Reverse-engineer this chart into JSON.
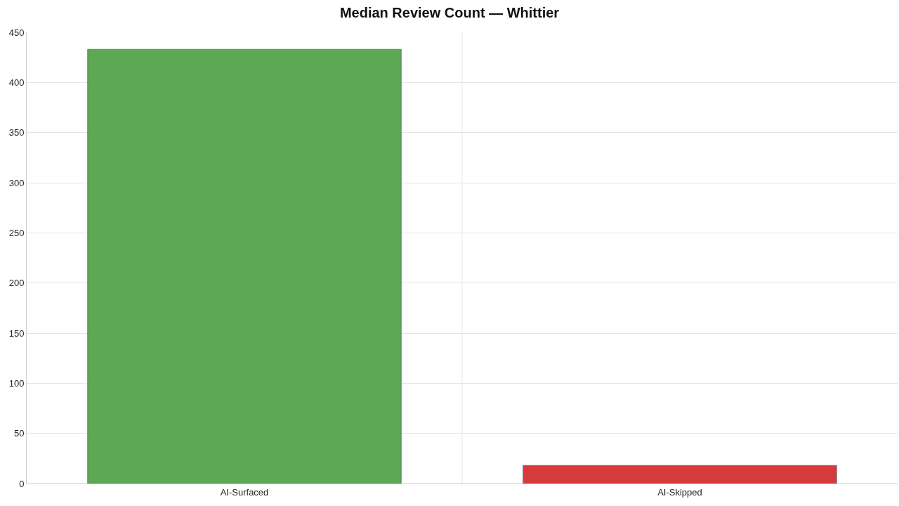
{
  "chart_data": {
    "type": "bar",
    "title": "Median Review Count — Whittier",
    "categories": [
      "AI-Surfaced",
      "AI-Skipped"
    ],
    "values": [
      433,
      18
    ],
    "colors": [
      "#5da853",
      "#d63a3a"
    ],
    "ylim": [
      0,
      450
    ],
    "yticks": [
      0,
      50,
      100,
      150,
      200,
      250,
      300,
      350,
      400,
      450
    ],
    "grid": true,
    "legend": false
  }
}
